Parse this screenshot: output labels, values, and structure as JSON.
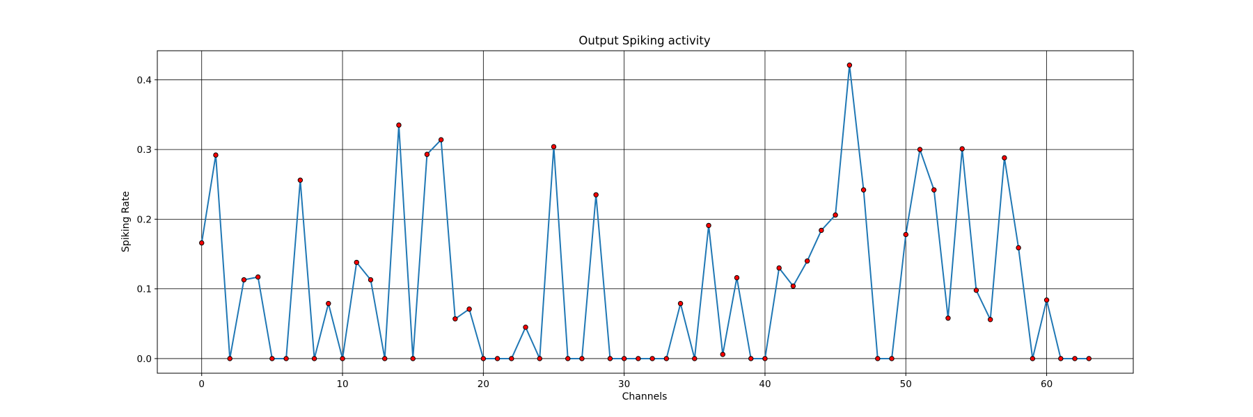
{
  "chart_data": {
    "type": "line",
    "title": "Output Spiking activity",
    "xlabel": "Channels",
    "ylabel": "Spiking Rate",
    "xlim": [
      -3.15,
      66.15
    ],
    "ylim": [
      -0.021,
      0.4417
    ],
    "x_ticks": [
      0,
      10,
      20,
      30,
      40,
      50,
      60
    ],
    "y_ticks": [
      0.0,
      0.1,
      0.2,
      0.3,
      0.4
    ],
    "y_tick_labels": [
      "0.0",
      "0.1",
      "0.2",
      "0.3",
      "0.4"
    ],
    "grid": true,
    "legend": "none",
    "line_color": "#1f77b4",
    "marker_face_color": "#ff0000",
    "marker_edge_color": "#000000",
    "series": [
      {
        "x": [
          0,
          1,
          2,
          3,
          4,
          5,
          6,
          7,
          8,
          9,
          10,
          11,
          12,
          13,
          14,
          15,
          16,
          17,
          18,
          19,
          20,
          21,
          22,
          23,
          24,
          25,
          26,
          27,
          28,
          29,
          30,
          31,
          32,
          33,
          34,
          35,
          36,
          37,
          38,
          39,
          40,
          41,
          42,
          43,
          44,
          45,
          46,
          47,
          48,
          49,
          50,
          51,
          52,
          53,
          54,
          55,
          56,
          57,
          58,
          59,
          60,
          61,
          62,
          63
        ],
        "values": [
          0.166,
          0.292,
          0.0,
          0.113,
          0.117,
          0.0,
          0.0,
          0.256,
          0.0,
          0.079,
          0.0,
          0.138,
          0.113,
          0.0,
          0.335,
          0.0,
          0.293,
          0.314,
          0.057,
          0.071,
          0.0,
          0.0,
          0.0,
          0.045,
          0.0,
          0.304,
          0.0,
          0.0,
          0.235,
          0.0,
          0.0,
          0.0,
          0.0,
          0.0,
          0.079,
          0.0,
          0.191,
          0.006,
          0.116,
          0.0,
          0.0,
          0.13,
          0.104,
          0.14,
          0.184,
          0.206,
          0.421,
          0.242,
          0.0,
          0.0,
          0.178,
          0.3,
          0.242,
          0.058,
          0.301,
          0.098,
          0.056,
          0.288,
          0.159,
          0.0,
          0.084,
          0.0,
          0.0,
          0.0
        ]
      }
    ]
  }
}
